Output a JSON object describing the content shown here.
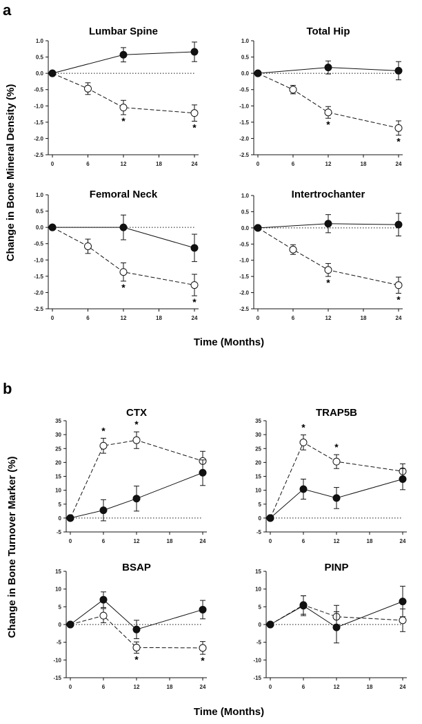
{
  "figure": {
    "panel_a": {
      "letter": "a",
      "ylabel": "Change in Bone Mineral Density (%)",
      "xlabel": "Time (Months)"
    },
    "panel_b": {
      "letter": "b",
      "ylabel": "Change in Bone Turnover Marker (%)",
      "xlabel": "Time (Months)"
    }
  },
  "colors": {
    "filled_series": "#111111",
    "open_series": "#ffffff",
    "axis": "#111111"
  },
  "chart_data": [
    {
      "type": "line",
      "title": "Lumbar Spine",
      "x": [
        0,
        6,
        12,
        18,
        24
      ],
      "xticks": [
        "0",
        "6",
        "12",
        "18",
        "24"
      ],
      "ylim": [
        -2.5,
        1.0
      ],
      "yticks": [
        "1.0",
        "0.5",
        "0.0",
        "-0.5",
        "-1.0",
        "-1.5",
        "-2.0",
        "-2.5"
      ],
      "ytick_values": [
        1.0,
        0.5,
        0.0,
        -0.5,
        -1.0,
        -1.5,
        -2.0,
        -2.5
      ],
      "reference_line": 0,
      "series": [
        {
          "style": "filled-solid",
          "points": [
            {
              "x": 0,
              "y": 0,
              "err": 0
            },
            {
              "x": 12,
              "y": 0.57,
              "err": 0.22
            },
            {
              "x": 24,
              "y": 0.66,
              "err": 0.3
            }
          ]
        },
        {
          "style": "open-dashed",
          "points": [
            {
              "x": 0,
              "y": 0,
              "err": 0
            },
            {
              "x": 6,
              "y": -0.47,
              "err": 0.18
            },
            {
              "x": 12,
              "y": -1.05,
              "err": 0.22
            },
            {
              "x": 24,
              "y": -1.22,
              "err": 0.25
            }
          ]
        }
      ],
      "significance": [
        {
          "x": 12,
          "label": "*"
        },
        {
          "x": 24,
          "label": "*"
        }
      ]
    },
    {
      "type": "line",
      "title": "Total Hip",
      "x": [
        0,
        6,
        12,
        18,
        24
      ],
      "xticks": [
        "0",
        "6",
        "12",
        "18",
        "24"
      ],
      "ylim": [
        -2.5,
        1.0
      ],
      "yticks": [
        "1.0",
        "0.5",
        "0.0",
        "-0.5",
        "-1.0",
        "-1.5",
        "-2.0",
        "-2.5"
      ],
      "ytick_values": [
        1.0,
        0.5,
        0.0,
        -0.5,
        -1.0,
        -1.5,
        -2.0,
        -2.5
      ],
      "reference_line": 0,
      "series": [
        {
          "style": "filled-solid",
          "points": [
            {
              "x": 0,
              "y": 0,
              "err": 0
            },
            {
              "x": 12,
              "y": 0.18,
              "err": 0.2
            },
            {
              "x": 24,
              "y": 0.08,
              "err": 0.28
            }
          ]
        },
        {
          "style": "open-dashed",
          "points": [
            {
              "x": 0,
              "y": 0,
              "err": 0
            },
            {
              "x": 6,
              "y": -0.5,
              "err": 0.13
            },
            {
              "x": 12,
              "y": -1.2,
              "err": 0.18
            },
            {
              "x": 24,
              "y": -1.68,
              "err": 0.22
            }
          ]
        }
      ],
      "significance": [
        {
          "x": 12,
          "label": "*"
        },
        {
          "x": 24,
          "label": "*"
        }
      ]
    },
    {
      "type": "line",
      "title": "Femoral Neck",
      "x": [
        0,
        6,
        12,
        18,
        24
      ],
      "xticks": [
        "0",
        "6",
        "12",
        "18",
        "24"
      ],
      "ylim": [
        -2.5,
        1.0
      ],
      "yticks": [
        "1.0",
        "0.5",
        "0.0",
        "-0.5",
        "-1.0",
        "-1.5",
        "-2.0",
        "-2.5"
      ],
      "ytick_values": [
        1.0,
        0.5,
        0.0,
        -0.5,
        -1.0,
        -1.5,
        -2.0,
        -2.5
      ],
      "reference_line": 0,
      "series": [
        {
          "style": "filled-solid",
          "points": [
            {
              "x": 0,
              "y": 0,
              "err": 0
            },
            {
              "x": 12,
              "y": 0.0,
              "err": 0.38
            },
            {
              "x": 24,
              "y": -0.63,
              "err": 0.42
            }
          ]
        },
        {
          "style": "open-dashed",
          "points": [
            {
              "x": 0,
              "y": 0,
              "err": 0
            },
            {
              "x": 6,
              "y": -0.58,
              "err": 0.22
            },
            {
              "x": 12,
              "y": -1.37,
              "err": 0.28
            },
            {
              "x": 24,
              "y": -1.77,
              "err": 0.33
            }
          ]
        }
      ],
      "significance": [
        {
          "x": 12,
          "label": "*"
        },
        {
          "x": 24,
          "label": "*"
        }
      ]
    },
    {
      "type": "line",
      "title": "Intertrochanter",
      "x": [
        0,
        6,
        12,
        18,
        24
      ],
      "xticks": [
        "0",
        "6",
        "12",
        "18",
        "24"
      ],
      "ylim": [
        -2.5,
        1.0
      ],
      "yticks": [
        "1.0",
        "0.5",
        "0.0",
        "-0.5",
        "-1.0",
        "-1.5",
        "-2.0",
        "-2.5"
      ],
      "ytick_values": [
        1.0,
        0.5,
        0.0,
        -0.5,
        -1.0,
        -1.5,
        -2.0,
        -2.5
      ],
      "reference_line": 0,
      "series": [
        {
          "style": "filled-solid",
          "points": [
            {
              "x": 0,
              "y": 0,
              "err": 0
            },
            {
              "x": 12,
              "y": 0.13,
              "err": 0.28
            },
            {
              "x": 24,
              "y": 0.1,
              "err": 0.35
            }
          ]
        },
        {
          "style": "open-dashed",
          "points": [
            {
              "x": 0,
              "y": 0,
              "err": 0
            },
            {
              "x": 6,
              "y": -0.67,
              "err": 0.15
            },
            {
              "x": 12,
              "y": -1.3,
              "err": 0.2
            },
            {
              "x": 24,
              "y": -1.77,
              "err": 0.25
            }
          ]
        }
      ],
      "significance": [
        {
          "x": 12,
          "label": "*"
        },
        {
          "x": 24,
          "label": "*"
        }
      ]
    },
    {
      "type": "line",
      "title": "CTX",
      "x": [
        0,
        6,
        12,
        18,
        24
      ],
      "xticks": [
        "0",
        "6",
        "12",
        "18",
        "24"
      ],
      "ylim": [
        -5,
        35
      ],
      "yticks": [
        "35",
        "30",
        "25",
        "20",
        "15",
        "10",
        "5",
        "0",
        "-5"
      ],
      "ytick_values": [
        35,
        30,
        25,
        20,
        15,
        10,
        5,
        0,
        -5
      ],
      "reference_line": 0,
      "series": [
        {
          "style": "filled-solid",
          "points": [
            {
              "x": 0,
              "y": 0,
              "err": 0
            },
            {
              "x": 6,
              "y": 2.8,
              "err": 3.8
            },
            {
              "x": 12,
              "y": 7.0,
              "err": 4.5
            },
            {
              "x": 24,
              "y": 16.3,
              "err": 4.6
            }
          ]
        },
        {
          "style": "open-dashed",
          "points": [
            {
              "x": 0,
              "y": 0,
              "err": 0
            },
            {
              "x": 6,
              "y": 26.0,
              "err": 2.7
            },
            {
              "x": 12,
              "y": 28.0,
              "err": 3.0
            },
            {
              "x": 24,
              "y": 20.5,
              "err": 3.5
            }
          ]
        }
      ],
      "significance": [
        {
          "x": 6,
          "label": "*"
        },
        {
          "x": 12,
          "label": "*"
        }
      ]
    },
    {
      "type": "line",
      "title": "TRAP5B",
      "x": [
        0,
        6,
        12,
        18,
        24
      ],
      "xticks": [
        "0",
        "6",
        "12",
        "18",
        "24"
      ],
      "ylim": [
        -5,
        35
      ],
      "yticks": [
        "35",
        "30",
        "25",
        "20",
        "15",
        "10",
        "5",
        "0",
        "-5"
      ],
      "ytick_values": [
        35,
        30,
        25,
        20,
        15,
        10,
        5,
        0,
        -5
      ],
      "reference_line": 0,
      "series": [
        {
          "style": "filled-solid",
          "points": [
            {
              "x": 0,
              "y": 0,
              "err": 0
            },
            {
              "x": 6,
              "y": 10.4,
              "err": 3.6
            },
            {
              "x": 12,
              "y": 7.2,
              "err": 3.8
            },
            {
              "x": 24,
              "y": 14.0,
              "err": 3.8
            }
          ]
        },
        {
          "style": "open-dashed",
          "points": [
            {
              "x": 0,
              "y": 0,
              "err": 0
            },
            {
              "x": 6,
              "y": 27.2,
              "err": 2.7
            },
            {
              "x": 12,
              "y": 20.3,
              "err": 2.5
            },
            {
              "x": 24,
              "y": 16.8,
              "err": 2.7
            }
          ]
        }
      ],
      "significance": [
        {
          "x": 6,
          "label": "*"
        },
        {
          "x": 12,
          "label": "*"
        }
      ]
    },
    {
      "type": "line",
      "title": "BSAP",
      "x": [
        0,
        6,
        12,
        18,
        24
      ],
      "xticks": [
        "0",
        "6",
        "12",
        "18",
        "24"
      ],
      "ylim": [
        -15,
        15
      ],
      "yticks": [
        "15",
        "10",
        "5",
        "0",
        "-5",
        "-10",
        "-15"
      ],
      "ytick_values": [
        15,
        10,
        5,
        0,
        -5,
        -10,
        -15
      ],
      "reference_line": 0,
      "series": [
        {
          "style": "filled-solid",
          "points": [
            {
              "x": 0,
              "y": 0,
              "err": 0
            },
            {
              "x": 6,
              "y": 7.0,
              "err": 2.2
            },
            {
              "x": 12,
              "y": -1.4,
              "err": 2.6
            },
            {
              "x": 24,
              "y": 4.2,
              "err": 2.6
            }
          ]
        },
        {
          "style": "open-dashed",
          "points": [
            {
              "x": 0,
              "y": 0,
              "err": 0
            },
            {
              "x": 6,
              "y": 2.5,
              "err": 2.0
            },
            {
              "x": 12,
              "y": -6.5,
              "err": 1.6
            },
            {
              "x": 24,
              "y": -6.6,
              "err": 1.8
            }
          ]
        }
      ],
      "significance": [
        {
          "x": 12,
          "label": "*"
        },
        {
          "x": 24,
          "label": "*"
        }
      ]
    },
    {
      "type": "line",
      "title": "PINP",
      "x": [
        0,
        6,
        12,
        18,
        24
      ],
      "xticks": [
        "0",
        "6",
        "12",
        "18",
        "24"
      ],
      "ylim": [
        -15,
        15
      ],
      "yticks": [
        "15",
        "10",
        "5",
        "0",
        "-5",
        "-10",
        "-15"
      ],
      "ytick_values": [
        15,
        10,
        5,
        0,
        -5,
        -10,
        -15
      ],
      "reference_line": 0,
      "series": [
        {
          "style": "filled-solid",
          "points": [
            {
              "x": 0,
              "y": 0,
              "err": 0
            },
            {
              "x": 6,
              "y": 5.3,
              "err": 2.8
            },
            {
              "x": 12,
              "y": -0.8,
              "err": 4.4
            },
            {
              "x": 24,
              "y": 6.5,
              "err": 4.3
            }
          ]
        },
        {
          "style": "open-dashed",
          "points": [
            {
              "x": 0,
              "y": 0,
              "err": 0
            },
            {
              "x": 6,
              "y": 5.5,
              "err": 2.6
            },
            {
              "x": 12,
              "y": 2.2,
              "err": 3.2
            },
            {
              "x": 24,
              "y": 1.2,
              "err": 3.2
            }
          ]
        }
      ],
      "significance": []
    }
  ]
}
